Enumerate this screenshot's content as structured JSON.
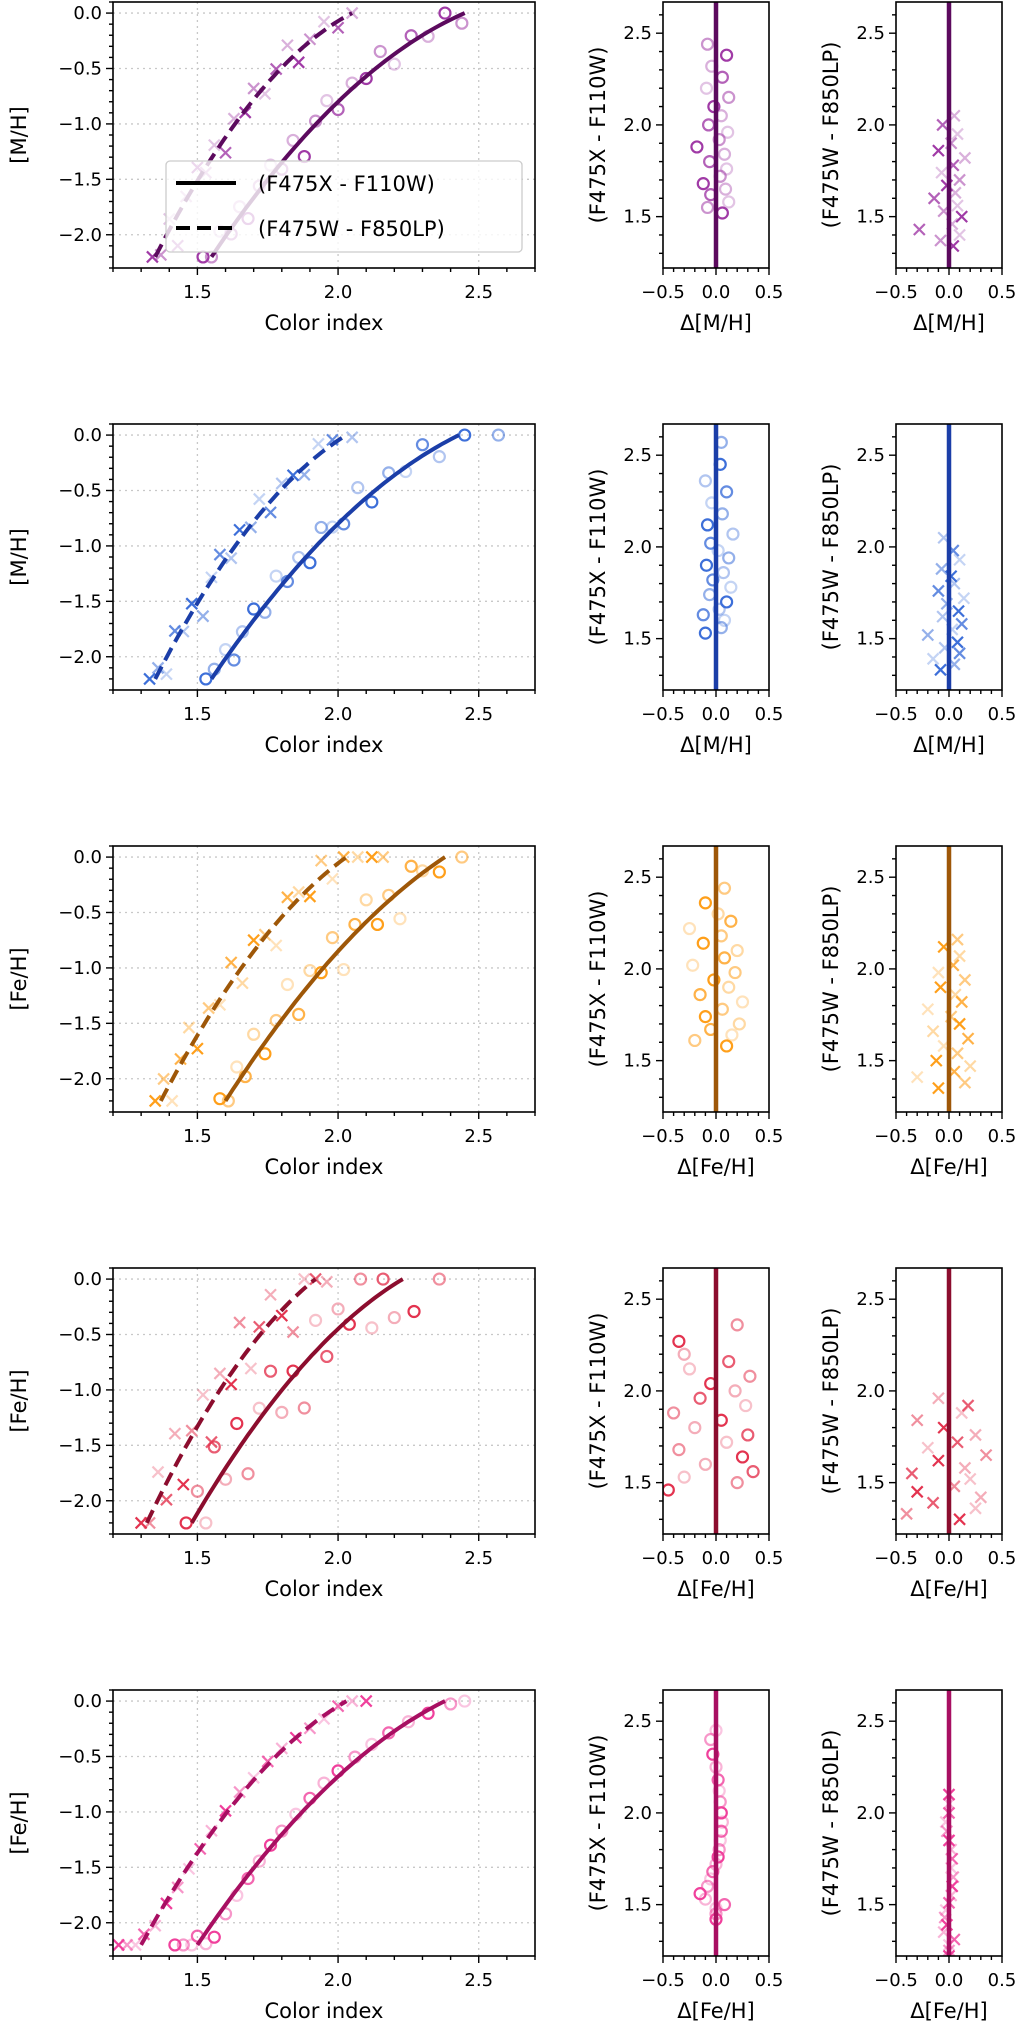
{
  "chart_data": {
    "type": "scatter",
    "legend": {
      "placement": "lower-right of first panel",
      "entries": [
        {
          "label": "(F475X - F110W)",
          "style": "solid"
        },
        {
          "label": "(F475W - F850LP)",
          "style": "dashed"
        }
      ]
    },
    "main_axes": {
      "xlabel": "Color index",
      "xlim": [
        1.2,
        2.7
      ],
      "ylim": [
        -2.3,
        0.1
      ],
      "grid": true,
      "xticks": [
        1.5,
        2.0,
        2.5
      ],
      "xtick_labels": [
        "1.5",
        "2.0",
        "2.5"
      ],
      "yticks": [
        0.0,
        -0.5,
        -1.0,
        -1.5,
        -2.0
      ],
      "ytick_labels": [
        "0.0",
        "−0.5",
        "−1.0",
        "−1.5",
        "−2.0"
      ]
    },
    "residual_axes": {
      "xlim": [
        -0.5,
        0.5
      ],
      "ylim": [
        1.22,
        2.67
      ],
      "grid": false,
      "xticks": [
        -0.5,
        0.0,
        0.5
      ],
      "xtick_labels": [
        "−0.5",
        "0.0",
        "0.5"
      ],
      "yticks": [
        1.5,
        2.0,
        2.5
      ],
      "ytick_labels": [
        "1.5",
        "2.0",
        "2.5"
      ],
      "ylabels": [
        "(F475X - F110W)",
        "(F475W - F850LP)"
      ]
    },
    "rows": [
      {
        "ylabel": "[M/H]",
        "dlabel": "Δ[M/H]",
        "color": "#a03aa6",
        "line_color": "#5c0a5e",
        "solid": {
          "fit_points": [
            [
              1.55,
              -2.2
            ],
            [
              2.0,
              -0.8
            ],
            [
              2.45,
              0.0
            ]
          ],
          "color_index": [
            1.52,
            1.55,
            1.58,
            1.62,
            1.65,
            1.68,
            1.72,
            1.76,
            1.8,
            1.84,
            1.88,
            1.92,
            1.96,
            2.0,
            2.05,
            2.1,
            2.15,
            2.2,
            2.26,
            2.32,
            2.38,
            2.44
          ],
          "delta": [
            0.06,
            -0.08,
            0.12,
            -0.05,
            0.09,
            -0.12,
            0.04,
            0.1,
            -0.06,
            0.08,
            -0.18,
            0.03,
            0.11,
            -0.07,
            0.05,
            -0.02,
            0.12,
            -0.09,
            0.06,
            -0.04,
            0.1,
            -0.08
          ]
        },
        "dashed": {
          "fit_points": [
            [
              1.35,
              -2.2
            ],
            [
              1.7,
              -0.78
            ],
            [
              2.05,
              0.0
            ]
          ],
          "color_index": [
            1.34,
            1.37,
            1.4,
            1.43,
            1.46,
            1.5,
            1.53,
            1.56,
            1.6,
            1.63,
            1.67,
            1.7,
            1.74,
            1.78,
            1.82,
            1.86,
            1.9,
            1.95,
            2.0,
            2.05
          ],
          "delta": [
            0.04,
            -0.08,
            0.1,
            -0.28,
            0.03,
            0.12,
            -0.05,
            0.08,
            -0.14,
            0.06,
            -0.02,
            0.1,
            -0.07,
            0.04,
            0.15,
            -0.1,
            0.02,
            0.08,
            -0.06,
            0.05
          ]
        }
      },
      {
        "ylabel": "[M/H]",
        "dlabel": "Δ[M/H]",
        "color": "#3d6fd9",
        "line_color": "#1b3ea8",
        "solid": {
          "fit_points": [
            [
              1.55,
              -2.2
            ],
            [
              2.0,
              -0.8
            ],
            [
              2.43,
              0.0
            ]
          ],
          "color_index": [
            1.53,
            1.56,
            1.6,
            1.63,
            1.66,
            1.7,
            1.74,
            1.78,
            1.82,
            1.86,
            1.9,
            1.94,
            1.98,
            2.02,
            2.07,
            2.12,
            2.18,
            2.24,
            2.3,
            2.36,
            2.45,
            2.57
          ],
          "delta": [
            -0.1,
            0.05,
            0.08,
            -0.12,
            0.03,
            0.1,
            -0.06,
            0.14,
            -0.03,
            0.07,
            -0.09,
            0.12,
            0.02,
            -0.05,
            0.16,
            -0.08,
            0.06,
            -0.04,
            0.1,
            -0.1,
            0.04,
            0.05
          ]
        },
        "dashed": {
          "fit_points": [
            [
              1.35,
              -2.2
            ],
            [
              1.7,
              -0.78
            ],
            [
              2.03,
              0.0
            ]
          ],
          "color_index": [
            1.33,
            1.36,
            1.39,
            1.42,
            1.45,
            1.48,
            1.52,
            1.55,
            1.58,
            1.62,
            1.65,
            1.69,
            1.72,
            1.76,
            1.8,
            1.84,
            1.88,
            1.93,
            1.98,
            2.05
          ],
          "delta": [
            -0.08,
            0.05,
            -0.15,
            0.1,
            -0.04,
            0.08,
            -0.2,
            0.03,
            0.12,
            -0.06,
            0.09,
            -0.02,
            0.14,
            -0.1,
            0.05,
            0.02,
            -0.07,
            0.1,
            0.04,
            -0.05
          ]
        }
      },
      {
        "ylabel": "[Fe/H]",
        "dlabel": "Δ[Fe/H]",
        "color": "#ff9f1a",
        "line_color": "#9e5708",
        "solid": {
          "fit_points": [
            [
              1.6,
              -2.2
            ],
            [
              2.0,
              -0.85
            ],
            [
              2.38,
              0.0
            ]
          ],
          "color_index": [
            1.58,
            1.61,
            1.64,
            1.67,
            1.7,
            1.74,
            1.78,
            1.82,
            1.86,
            1.9,
            1.94,
            1.98,
            2.02,
            2.06,
            2.1,
            2.14,
            2.18,
            2.22,
            2.26,
            2.3,
            2.36,
            2.44
          ],
          "delta": [
            0.1,
            -0.2,
            0.15,
            -0.05,
            0.22,
            -0.1,
            0.06,
            0.25,
            -0.15,
            0.12,
            -0.02,
            0.18,
            -0.22,
            0.08,
            0.2,
            -0.12,
            0.05,
            -0.25,
            0.14,
            0.02,
            -0.1,
            0.08
          ]
        },
        "dashed": {
          "fit_points": [
            [
              1.37,
              -2.2
            ],
            [
              1.7,
              -0.85
            ],
            [
              2.03,
              0.0
            ]
          ],
          "color_index": [
            1.35,
            1.38,
            1.41,
            1.44,
            1.47,
            1.5,
            1.54,
            1.58,
            1.62,
            1.66,
            1.7,
            1.74,
            1.78,
            1.82,
            1.86,
            1.9,
            1.94,
            1.98,
            2.02,
            2.07,
            2.12,
            2.16
          ],
          "delta": [
            -0.1,
            0.15,
            -0.3,
            0.05,
            0.2,
            -0.12,
            0.08,
            -0.05,
            0.18,
            -0.15,
            0.1,
            0.02,
            -0.2,
            0.12,
            0.06,
            -0.08,
            0.15,
            -0.1,
            0.04,
            0.1,
            -0.05,
            0.08
          ]
        }
      },
      {
        "ylabel": "[Fe/H]",
        "dlabel": "Δ[Fe/H]",
        "color": "#e3334f",
        "line_color": "#8c0d2e",
        "solid": {
          "fit_points": [
            [
              1.48,
              -2.2
            ],
            [
              1.85,
              -0.85
            ],
            [
              2.23,
              0.0
            ]
          ],
          "color_index": [
            1.46,
            1.5,
            1.53,
            1.56,
            1.6,
            1.64,
            1.68,
            1.72,
            1.76,
            1.8,
            1.84,
            1.88,
            1.92,
            1.96,
            2.0,
            2.04,
            2.08,
            2.12,
            2.16,
            2.2,
            2.27,
            2.36
          ],
          "delta": [
            -0.45,
            0.2,
            -0.3,
            0.35,
            -0.1,
            0.25,
            -0.35,
            0.1,
            0.3,
            -0.2,
            0.05,
            -0.4,
            0.28,
            -0.15,
            0.18,
            -0.05,
            0.32,
            -0.25,
            0.12,
            -0.3,
            -0.35,
            0.2
          ]
        },
        "dashed": {
          "fit_points": [
            [
              1.32,
              -2.2
            ],
            [
              1.62,
              -0.85
            ],
            [
              1.92,
              0.0
            ]
          ],
          "color_index": [
            1.3,
            1.33,
            1.36,
            1.39,
            1.42,
            1.45,
            1.48,
            1.52,
            1.55,
            1.58,
            1.62,
            1.65,
            1.69,
            1.72,
            1.76,
            1.8,
            1.84,
            1.88,
            1.92,
            1.96
          ],
          "delta": [
            0.1,
            -0.4,
            0.25,
            -0.15,
            0.3,
            -0.3,
            0.05,
            0.2,
            -0.35,
            0.15,
            -0.1,
            0.35,
            -0.2,
            0.08,
            0.25,
            -0.05,
            -0.3,
            0.12,
            0.18,
            -0.1
          ]
        }
      },
      {
        "ylabel": "[Fe/H]",
        "dlabel": "Δ[Fe/H]",
        "color": "#f0409c",
        "line_color": "#a80f62",
        "solid": {
          "fit_points": [
            [
              1.5,
              -2.2
            ],
            [
              1.95,
              -0.8
            ],
            [
              2.38,
              0.0
            ]
          ],
          "color_index": [
            1.42,
            1.45,
            1.48,
            1.5,
            1.53,
            1.56,
            1.6,
            1.64,
            1.68,
            1.72,
            1.76,
            1.8,
            1.85,
            1.9,
            1.95,
            2.0,
            2.06,
            2.12,
            2.18,
            2.25,
            2.32,
            2.4,
            2.45
          ],
          "delta": [
            0.0,
            0.0,
            0.0,
            0.08,
            -0.1,
            -0.15,
            -0.08,
            -0.05,
            -0.03,
            0.0,
            0.02,
            0.03,
            0.04,
            0.05,
            0.06,
            0.05,
            0.04,
            0.03,
            0.02,
            0.0,
            -0.03,
            -0.05,
            0.0
          ]
        },
        "dashed": {
          "fit_points": [
            [
              1.3,
              -2.2
            ],
            [
              1.67,
              -0.8
            ],
            [
              2.03,
              0.0
            ]
          ],
          "color_index": [
            1.22,
            1.25,
            1.28,
            1.31,
            1.35,
            1.39,
            1.43,
            1.47,
            1.51,
            1.55,
            1.6,
            1.65,
            1.7,
            1.75,
            1.8,
            1.85,
            1.9,
            1.95,
            2.0,
            2.05,
            2.1
          ],
          "delta": [
            0.0,
            0.0,
            0.0,
            0.05,
            -0.05,
            -0.02,
            -0.04,
            -0.03,
            0.0,
            0.02,
            0.03,
            0.04,
            0.02,
            0.03,
            0.02,
            0.0,
            -0.02,
            -0.03,
            0.0,
            0.0,
            0.0
          ]
        }
      }
    ]
  }
}
